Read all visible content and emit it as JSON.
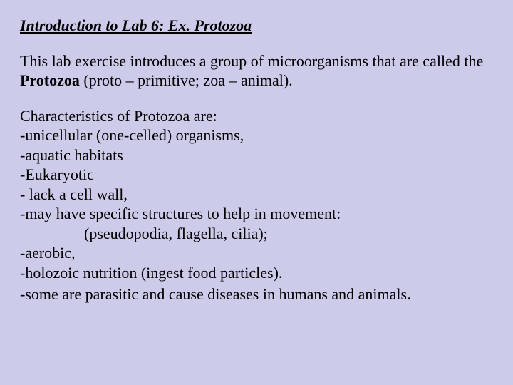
{
  "colors": {
    "background": "#ccccea",
    "text": "#000000"
  },
  "typography": {
    "font_family": "Times New Roman",
    "title_fontsize": 22,
    "body_fontsize": 22,
    "title_style": "bold italic underline"
  },
  "slide": {
    "title": "Introduction to Lab 6: Ex. Protozoa",
    "intro_prefix": "This lab exercise introduces a group of microorganisms that are called the ",
    "intro_bold": "Protozoa",
    "intro_suffix": " (proto – primitive; zoa – animal).",
    "char_heading": "Characteristics of Protozoa are:",
    "items": {
      "c1": "-unicellular (one-celled) organisms,",
      "c2": "-aquatic habitats",
      "c3": "-Eukaryotic",
      "c4": "- lack a cell wall,",
      "c5": "-may have specific structures to help in movement:",
      "c5a": "(pseudopodia, flagella, cilia);",
      "c6": "-aerobic,",
      "c7": "-holozoic nutrition  (ingest food particles).",
      "c8_text": "-some are parasitic and cause diseases in humans and animals",
      "c8_dot": "."
    }
  }
}
